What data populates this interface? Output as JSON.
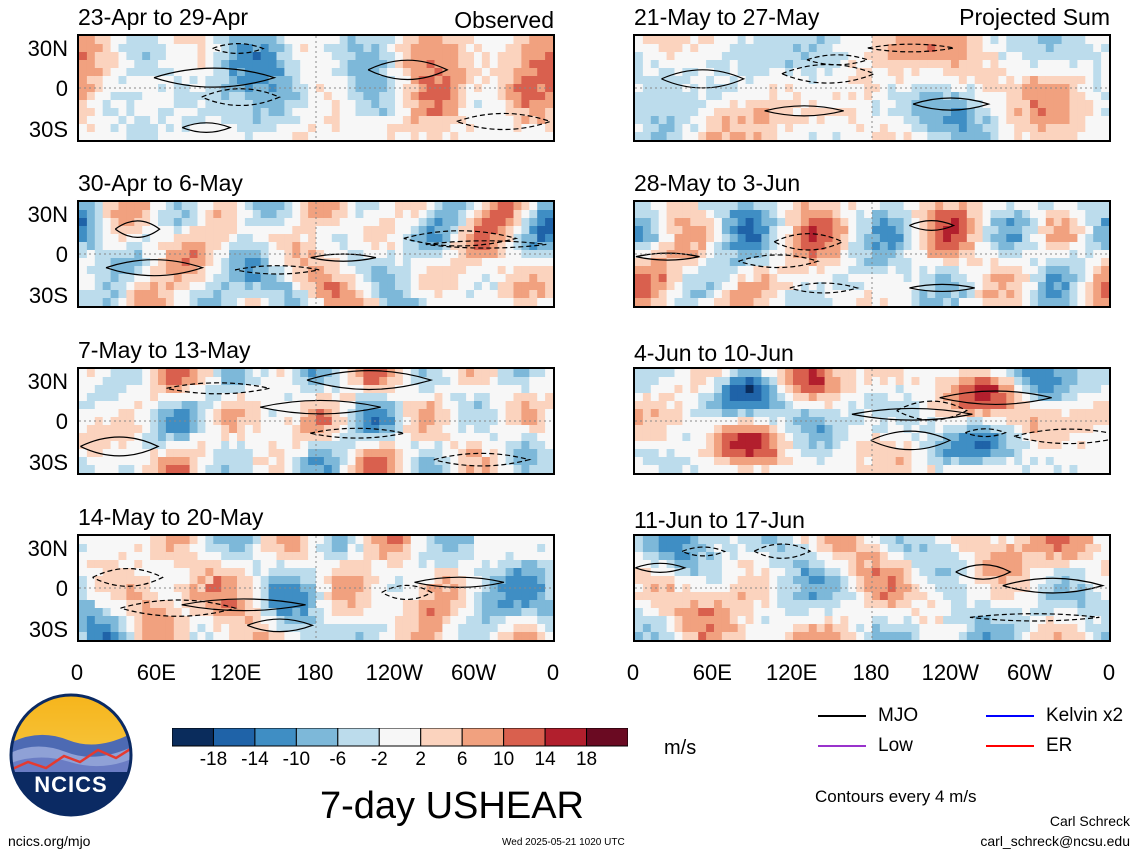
{
  "chart_data": {
    "type": "heatmap",
    "title": "7-day USHEAR",
    "variable": "USHEAR",
    "units": "m/s",
    "x_ticks": [
      "0",
      "60E",
      "120E",
      "180",
      "120W",
      "60W",
      "0"
    ],
    "y_ticks": [
      "30N",
      "0",
      "30S"
    ],
    "colorbar": {
      "tick_labels": [
        "-18",
        "-14",
        "-10",
        "-6",
        "-2",
        "2",
        "6",
        "10",
        "14",
        "18"
      ],
      "colors": [
        "#0a2c5c",
        "#1f63a8",
        "#3f8ec4",
        "#7db8d9",
        "#bcdcec",
        "#f7f7f7",
        "#fbd3be",
        "#f1a17f",
        "#d9604e",
        "#b21f2d",
        "#6a0a22"
      ]
    },
    "columns": [
      {
        "tag": "Observed",
        "panels": [
          "23-Apr to 29-Apr",
          "30-Apr to 6-May",
          "7-May to 13-May",
          "14-May to 20-May"
        ]
      },
      {
        "tag": "Projected Sum",
        "panels": [
          "21-May to 27-May",
          "28-May to 3-Jun",
          "4-Jun to 10-Jun",
          "11-Jun to 17-Jun"
        ]
      }
    ],
    "legend": [
      {
        "name": "MJO",
        "color": "#000000"
      },
      {
        "name": "Kelvin x2",
        "color": "#0000ff"
      },
      {
        "name": "Low",
        "color": "#9932cc"
      },
      {
        "name": "ER",
        "color": "#ff0000"
      }
    ],
    "contour_note": "Contours every 4 m/s"
  },
  "footer": {
    "logo_text": "NCICS",
    "url": "ncics.org/mjo",
    "timestamp": "Wed 2025-05-21 1020 UTC",
    "author": "Carl Schreck",
    "email": "carl_schreck@ncsu.edu"
  }
}
